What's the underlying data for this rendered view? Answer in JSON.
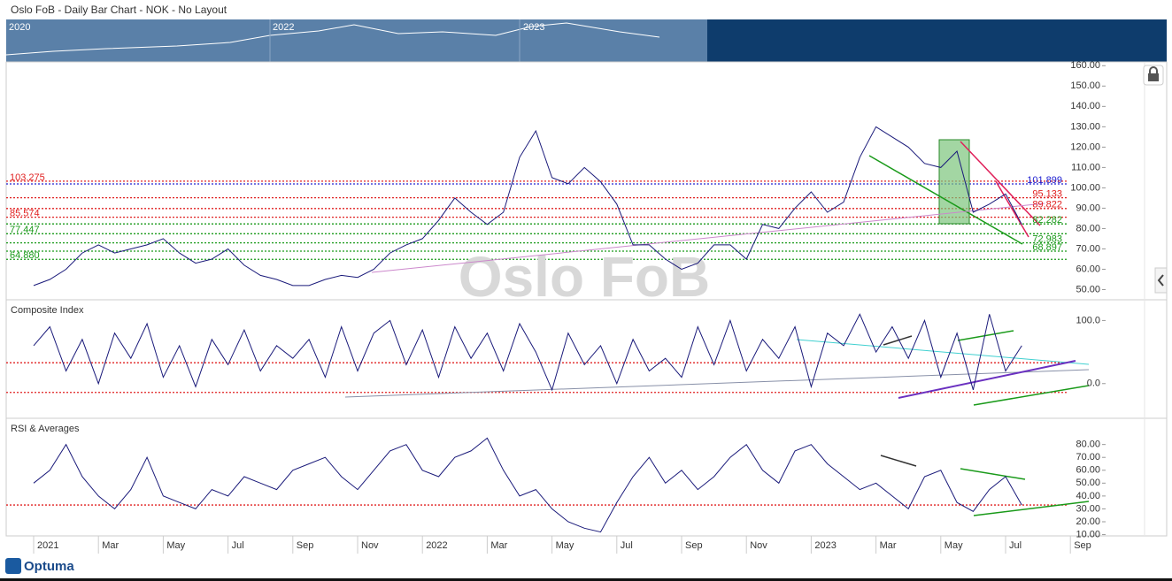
{
  "chart_data": {
    "type": "line",
    "title": "Oslo FoB - Daily Bar Chart - NOK - No Layout",
    "watermark": "Oslo FoB",
    "navigator": [
      "2020",
      "2022",
      "2023"
    ],
    "brand": "Optuma",
    "categories": [
      "2021",
      null,
      null,
      null,
      "Mar",
      null,
      null,
      null,
      "May",
      null,
      null,
      null,
      "Jul",
      null,
      null,
      null,
      "Sep",
      null,
      null,
      null,
      "Nov",
      null,
      null,
      null,
      "2022",
      null,
      null,
      null,
      "Mar",
      null,
      null,
      null,
      "May",
      null,
      null,
      null,
      "Jul",
      null,
      null,
      null,
      "Sep",
      null,
      null,
      null,
      "Nov",
      null,
      null,
      null,
      "2023",
      null,
      null,
      null,
      "Mar",
      null,
      null,
      null,
      "May",
      null,
      null,
      null,
      "Jul",
      null,
      null,
      null,
      "Sep"
    ],
    "panels": [
      {
        "title": null,
        "ylim": [
          45,
          161
        ],
        "yticks": [
          {
            "value": 50,
            "label": "50.00"
          },
          {
            "value": 60,
            "label": "60.00"
          },
          {
            "value": 70,
            "label": "70.00"
          },
          {
            "value": 80,
            "label": "80.00"
          },
          {
            "value": 90,
            "label": "90.00"
          },
          {
            "value": 100,
            "label": "100.00"
          },
          {
            "value": 110,
            "label": "110.00"
          },
          {
            "value": 120,
            "label": "120.00"
          },
          {
            "value": 130,
            "label": "130.00"
          },
          {
            "value": 140,
            "label": "140.00"
          },
          {
            "value": 150,
            "label": "150.00"
          },
          {
            "value": 160,
            "label": "160.00"
          }
        ],
        "levels": [
          {
            "value": 103.275,
            "label": "103.275",
            "color": "#e02020",
            "side": "left"
          },
          {
            "value": 101.899,
            "label": "101.899",
            "color": "#2020d0",
            "side": "right"
          },
          {
            "value": 95.133,
            "label": "95.133",
            "color": "#e02020",
            "side": "right"
          },
          {
            "value": 89.822,
            "label": "89.822",
            "color": "#e02020",
            "side": "right"
          },
          {
            "value": 85.574,
            "label": "85.574",
            "color": "#e02020",
            "side": "left"
          },
          {
            "value": 82.282,
            "label": "82.282",
            "color": "#1a9a1a",
            "side": "right"
          },
          {
            "value": 77.447,
            "label": "77.447",
            "color": "#1a9a1a",
            "side": "left"
          },
          {
            "value": 72.983,
            "label": "72.983",
            "color": "#1a9a1a",
            "side": "right"
          },
          {
            "value": 68.897,
            "label": "68.897",
            "color": "#1a9a1a",
            "side": "right"
          },
          {
            "value": 64.88,
            "label": "64.880",
            "color": "#1a9a1a",
            "side": "left"
          }
        ],
        "series": [
          {
            "name": null,
            "color": "#1a1a7a",
            "values": [
              52,
              55,
              60,
              68,
              72,
              68,
              70,
              72,
              75,
              68,
              63,
              65,
              70,
              62,
              57,
              55,
              52,
              52,
              55,
              57,
              56,
              60,
              68,
              72,
              75,
              84,
              95,
              88,
              82,
              88,
              115,
              128,
              105,
              102,
              110,
              103,
              92,
              72,
              72,
              65,
              60,
              63,
              72,
              72,
              65,
              82,
              80,
              90,
              98,
              88,
              93,
              115,
              130,
              125,
              120,
              112,
              110,
              118,
              88,
              92,
              97,
              82,
              null,
              null,
              null
            ]
          }
        ]
      },
      {
        "title": "Composite Index",
        "ylim": [
          -55,
          130
        ],
        "yticks": [
          {
            "value": 0,
            "label": "0.0"
          },
          {
            "value": 100,
            "label": "100.0"
          }
        ],
        "levels": [
          {
            "value": 33,
            "color": "#e02020"
          },
          {
            "value": -14,
            "color": "#e02020"
          }
        ],
        "series": [
          {
            "name": null,
            "color": "#1a1a7a",
            "values": [
              60,
              90,
              20,
              70,
              0,
              80,
              40,
              95,
              10,
              60,
              -5,
              70,
              30,
              85,
              20,
              60,
              40,
              70,
              10,
              90,
              20,
              80,
              100,
              30,
              85,
              10,
              90,
              40,
              80,
              20,
              95,
              50,
              -10,
              80,
              30,
              60,
              0,
              70,
              20,
              40,
              10,
              90,
              30,
              100,
              20,
              70,
              40,
              90,
              -5,
              80,
              60,
              110,
              50,
              90,
              40,
              100,
              10,
              80,
              -10,
              110,
              20,
              60,
              null,
              null,
              null
            ]
          }
        ]
      },
      {
        "title": "RSI & Averages",
        "ylim": [
          9,
          99
        ],
        "yticks": [
          {
            "value": 10,
            "label": "10.00"
          },
          {
            "value": 20,
            "label": "20.00"
          },
          {
            "value": 30,
            "label": "30.00"
          },
          {
            "value": 40,
            "label": "40.00"
          },
          {
            "value": 50,
            "label": "50.00"
          },
          {
            "value": 60,
            "label": "60.00"
          },
          {
            "value": 70,
            "label": "70.00"
          },
          {
            "value": 80,
            "label": "80.00"
          }
        ],
        "levels": [
          {
            "value": 33,
            "color": "#e02020"
          }
        ],
        "series": [
          {
            "name": null,
            "color": "#1a1a7a",
            "values": [
              50,
              60,
              80,
              55,
              40,
              30,
              45,
              70,
              40,
              35,
              30,
              45,
              40,
              55,
              50,
              45,
              60,
              65,
              70,
              55,
              45,
              60,
              75,
              80,
              60,
              55,
              70,
              75,
              85,
              60,
              40,
              45,
              30,
              20,
              15,
              12,
              35,
              55,
              70,
              50,
              60,
              45,
              55,
              70,
              80,
              60,
              50,
              75,
              80,
              65,
              55,
              45,
              50,
              40,
              30,
              55,
              60,
              35,
              28,
              45,
              55,
              33,
              null,
              null,
              null
            ]
          }
        ]
      }
    ]
  }
}
